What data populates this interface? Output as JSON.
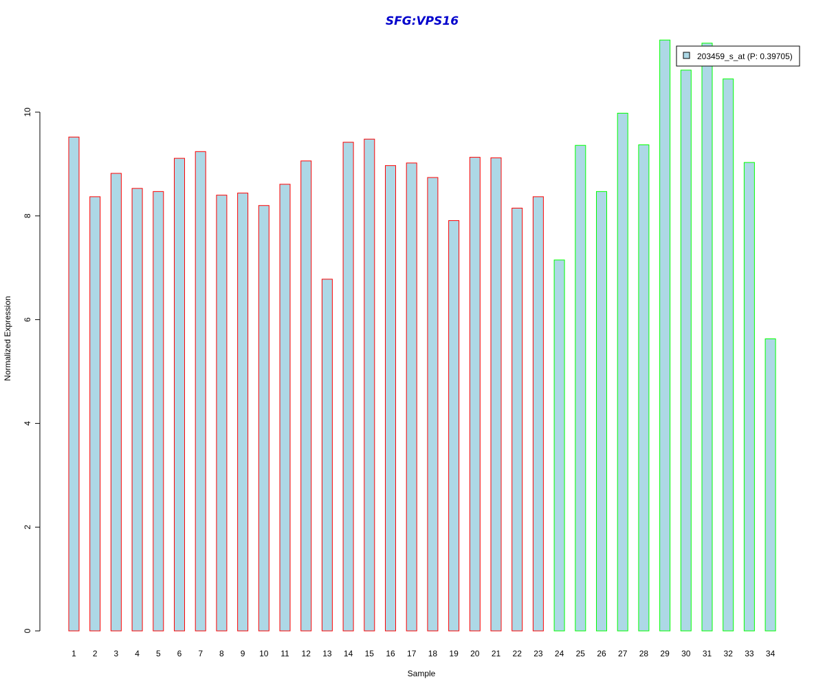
{
  "chart_data": {
    "type": "bar",
    "title": "SFG:VPS16",
    "xlabel": "Sample",
    "ylabel": "Normalized Expression",
    "ylim": [
      0,
      11.5
    ],
    "yticks": [
      0,
      2,
      4,
      6,
      8,
      10
    ],
    "categories": [
      "1",
      "2",
      "3",
      "4",
      "5",
      "6",
      "7",
      "8",
      "9",
      "10",
      "11",
      "12",
      "13",
      "14",
      "15",
      "16",
      "17",
      "18",
      "19",
      "20",
      "21",
      "22",
      "23",
      "24",
      "25",
      "26",
      "27",
      "28",
      "29",
      "30",
      "31",
      "32",
      "33",
      "34"
    ],
    "series": [
      {
        "name": "203459_s_at (P: 0.39705)",
        "values": [
          9.52,
          8.37,
          8.82,
          8.53,
          8.47,
          9.11,
          9.24,
          8.4,
          8.44,
          8.2,
          8.61,
          9.06,
          6.78,
          9.42,
          9.48,
          8.97,
          9.02,
          8.74,
          7.91,
          9.13,
          9.12,
          8.15,
          8.37,
          7.15,
          9.36,
          8.47,
          9.98,
          9.37,
          11.39,
          10.81,
          11.33,
          10.64,
          9.03,
          5.63
        ]
      }
    ],
    "group_a_count": 23,
    "colors": {
      "bar_fill": "#add8e6",
      "group_a_border": "#ff0000",
      "group_b_border": "#00ff00",
      "title": "#0000cc"
    },
    "legend_position": "top-right",
    "grid": false
  }
}
